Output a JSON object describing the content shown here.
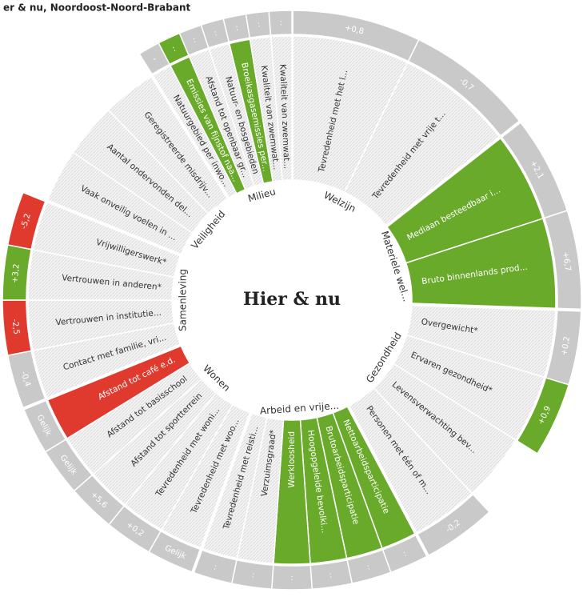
{
  "title": "er & nu, Noordoost-Noord-Brabant",
  "center": "Hier & nu",
  "sectors": [
    {
      "name": "Welzijn",
      "indicators": [
        {
          "label": "Tevredenheid met het l...",
          "value": "+0,8"
        },
        {
          "label": "Tevredenheid met vrije t...",
          "value": "-0,7"
        }
      ]
    },
    {
      "name": "Materiele wel...",
      "indicators": [
        {
          "label": "Mediaan besteedbaar i...",
          "value": "+2,1",
          "color": "#6aaa2a"
        },
        {
          "label": "Bruto binnenlands prod...",
          "value": "+6,7",
          "color": "#6aaa2a"
        }
      ]
    },
    {
      "name": "Gezondheid",
      "indicators": [
        {
          "label": "Overgewicht*",
          "value": "+0,2"
        },
        {
          "label": "Ervaren gezondheid*",
          "value": "+0,9",
          "value_color": "#6aaa2a"
        },
        {
          "label": "Levensverwachting bev..."
        },
        {
          "label": "Personen met één of m...",
          "value": "-0,2"
        }
      ]
    },
    {
      "name": "Arbeid en vrije...",
      "indicators": [
        {
          "label": "Nettoarbeidsparticipatie",
          "value": ":",
          "color": "#6aaa2a"
        },
        {
          "label": "Brutoarbeidsparticipatie",
          "value": ":",
          "color": "#6aaa2a"
        },
        {
          "label": "Hoogopgeleide bevolki...",
          "value": ":",
          "color": "#6aaa2a"
        },
        {
          "label": "Werkloosheid",
          "value": ":",
          "color": "#6aaa2a"
        },
        {
          "label": "Verzuimsgraad*",
          "value": ":"
        },
        {
          "label": "Tevredenheid met reisti...",
          "value": ":"
        }
      ]
    },
    {
      "name": "Wonen",
      "indicators": [
        {
          "label": "Tevredenheid met woo...",
          "value": "Gelijk"
        },
        {
          "label": "Tevredenheid met woni...",
          "value": "+0,2"
        },
        {
          "label": "Afstand tot sportterrein",
          "value": "+5,6"
        },
        {
          "label": "Afstand tot basisschool",
          "value": "Gelijk"
        },
        {
          "label": "Afstand tot café e.d.",
          "value": "Gelijk",
          "color": "#e03a2e"
        }
      ]
    },
    {
      "name": "Samenleving",
      "indicators": [
        {
          "label": "Contact met familie, vri...",
          "value": "-0,4"
        },
        {
          "label": "Vertrouwen in institutie...",
          "value": "-2,5",
          "value_color": "#e03a2e"
        },
        {
          "label": "Vertrouwen in anderen*",
          "value": "+3,2",
          "value_color": "#6aaa2a"
        },
        {
          "label": "Vrijwilligerswerk*",
          "value": "-5,2",
          "value_color": "#e03a2e"
        }
      ]
    },
    {
      "name": "Veiligheid",
      "indicators": [
        {
          "label": "Vaak onveilig voelen in ..."
        },
        {
          "label": "Aantal ondervonden del..."
        },
        {
          "label": "Geregistreerde misdrijv..."
        }
      ]
    },
    {
      "name": "Milieu",
      "indicators": [
        {
          "label": "Natuurgebied per inwo...",
          "value": "-"
        },
        {
          "label": "Emissies van fijnstof naa...",
          "value": ":",
          "color": "#6aaa2a",
          "value_color": "#6aaa2a"
        },
        {
          "label": "Afstand tot openbaar gr...",
          "value": ":"
        },
        {
          "label": "Natuur- en bosgebieden",
          "value": ":"
        },
        {
          "label": "Broeikasgasemissies per...",
          "value": ":",
          "color": "#6aaa2a"
        },
        {
          "label": "Kwaliteit van zwemwat...",
          "value": ":"
        },
        {
          "label": "Kwaliteit van zwemwat...",
          "value": ":"
        }
      ]
    }
  ]
}
